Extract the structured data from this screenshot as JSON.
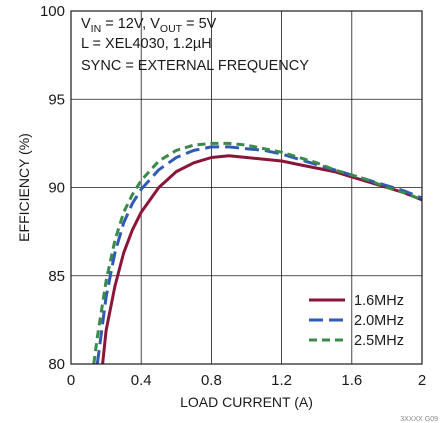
{
  "chart_data": {
    "type": "line",
    "xlabel": "LOAD CURRENT (A)",
    "ylabel": "EFFICIENCY (%)",
    "xlim": [
      0,
      2
    ],
    "ylim": [
      80,
      100
    ],
    "x_ticks": [
      "0",
      "0.4",
      "0.8",
      "1.2",
      "1.6",
      "2"
    ],
    "y_ticks": [
      "80",
      "85",
      "90",
      "95",
      "100"
    ],
    "grid": true,
    "legend_position": "bottom-right",
    "annotations": {
      "line1_vin": "V",
      "line1_vin_sub": "IN",
      "line1_mid": " = 12V, V",
      "line1_vout_sub": "OUT",
      "line1_end": " = 5V",
      "line2": "L = XEL4030, 1.2µH",
      "line3": "SYNC = EXTERNAL FREQUENCY"
    },
    "corner_code": "3XXXX G09",
    "series": [
      {
        "name": "1.6MHz",
        "color": "#8a1538",
        "dash": "solid",
        "x": [
          0.18,
          0.2,
          0.25,
          0.3,
          0.35,
          0.4,
          0.5,
          0.6,
          0.7,
          0.8,
          0.9,
          1.0,
          1.1,
          1.2,
          1.3,
          1.4,
          1.5,
          1.6,
          1.7,
          1.8,
          1.9,
          2.0
        ],
        "y": [
          80.0,
          81.9,
          84.4,
          86.3,
          87.6,
          88.6,
          90.0,
          90.9,
          91.4,
          91.7,
          91.8,
          91.7,
          91.6,
          91.5,
          91.3,
          91.1,
          90.9,
          90.6,
          90.3,
          90.0,
          89.7,
          89.3
        ]
      },
      {
        "name": "2.0MHz",
        "color": "#2f5bb7",
        "dash": "long-dash",
        "x": [
          0.15,
          0.2,
          0.25,
          0.3,
          0.35,
          0.4,
          0.5,
          0.6,
          0.7,
          0.8,
          0.9,
          1.0,
          1.1,
          1.2,
          1.3,
          1.4,
          1.5,
          1.6,
          1.7,
          1.8,
          1.9,
          2.0
        ],
        "y": [
          80.0,
          83.8,
          86.3,
          88.0,
          89.1,
          89.9,
          91.0,
          91.7,
          92.1,
          92.3,
          92.3,
          92.2,
          92.1,
          91.9,
          91.6,
          91.3,
          91.0,
          90.7,
          90.4,
          90.1,
          89.8,
          89.4
        ]
      },
      {
        "name": "2.5MHz",
        "color": "#3b8a4a",
        "dash": "dash",
        "x": [
          0.13,
          0.15,
          0.2,
          0.25,
          0.3,
          0.35,
          0.4,
          0.5,
          0.6,
          0.7,
          0.8,
          0.9,
          1.0,
          1.1,
          1.2,
          1.3,
          1.4,
          1.5,
          1.6,
          1.7,
          1.8,
          1.9,
          2.0
        ],
        "y": [
          80.0,
          81.5,
          84.7,
          87.0,
          88.6,
          89.6,
          90.4,
          91.5,
          92.1,
          92.4,
          92.5,
          92.5,
          92.4,
          92.2,
          92.0,
          91.7,
          91.4,
          91.0,
          90.7,
          90.4,
          90.0,
          89.7,
          89.3
        ]
      }
    ]
  }
}
